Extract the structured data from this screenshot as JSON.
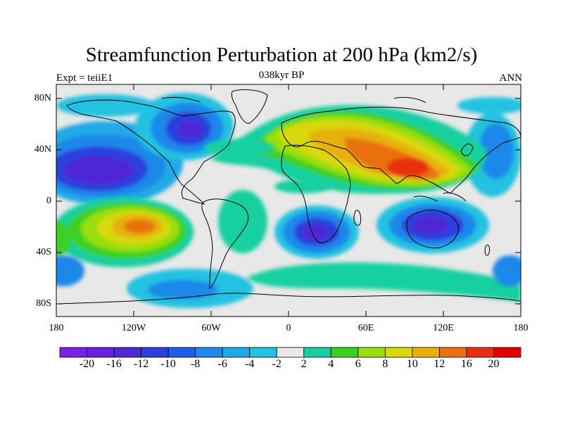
{
  "title": "Streamfunction Perturbation at 200 hPa (km2/s)",
  "subtitle_left": "Expt = teiiE1",
  "subtitle_center": "038kyr BP",
  "subtitle_right": "ANN",
  "lat_labels": [
    "80N",
    "40N",
    "0",
    "40S",
    "80S"
  ],
  "lon_labels": [
    "180",
    "120W",
    "60W",
    "0",
    "60E",
    "120E",
    "180"
  ],
  "colorbar": {
    "labels": [
      "-20",
      "-16",
      "-12",
      "-10",
      "-8",
      "-6",
      "-4",
      "-2",
      "2",
      "4",
      "6",
      "8",
      "10",
      "12",
      "16",
      "20"
    ],
    "colors": [
      "#7a1fe6",
      "#6a1ee0",
      "#5028d6",
      "#2a40dc",
      "#1f5fe8",
      "#1f88ea",
      "#20a9e6",
      "#22c2e0",
      "#e8e8e8",
      "#16d0a0",
      "#3cd020",
      "#9ade10",
      "#d8d80a",
      "#e8b008",
      "#e87010",
      "#e83010",
      "#e00000"
    ]
  },
  "map_info": {
    "projection": "cylindrical equidistant",
    "lon_range": [
      -180,
      180
    ],
    "lat_range": [
      -90,
      90
    ],
    "features": [
      "coastlines",
      "contour-fill shading"
    ]
  }
}
